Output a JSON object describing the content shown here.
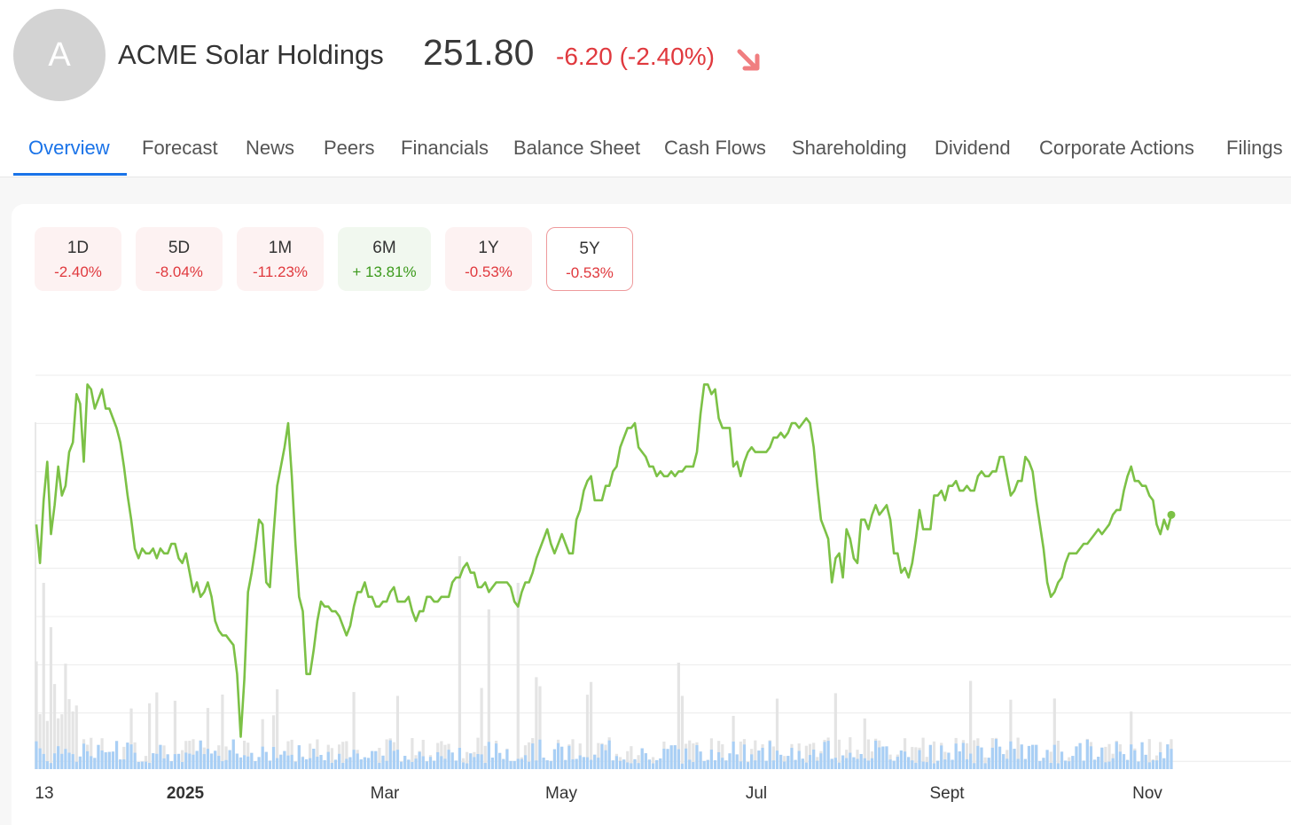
{
  "header": {
    "avatar_letter": "A",
    "company_name": "ACME Solar Holdings",
    "price": "251.80",
    "change_text": "-6.20 (-2.40%)",
    "change_color": "#e0393e",
    "trend_icon": "arrow-down-right-icon"
  },
  "tabs": [
    {
      "label": "Overview",
      "active": true
    },
    {
      "label": "Forecast"
    },
    {
      "label": "News"
    },
    {
      "label": "Peers"
    },
    {
      "label": "Financials"
    },
    {
      "label": "Balance Sheet"
    },
    {
      "label": "Cash Flows"
    },
    {
      "label": "Shareholding"
    },
    {
      "label": "Dividend"
    },
    {
      "label": "Corporate Actions"
    },
    {
      "label": "Filings"
    }
  ],
  "periods": [
    {
      "label": "1D",
      "value": "-2.40%",
      "tone": "negative"
    },
    {
      "label": "5D",
      "value": "-8.04%",
      "tone": "negative"
    },
    {
      "label": "1M",
      "value": "-11.23%",
      "tone": "negative"
    },
    {
      "label": "6M",
      "value": "+ 13.81%",
      "tone": "positive"
    },
    {
      "label": "1Y",
      "value": "-0.53%",
      "tone": "negative"
    },
    {
      "label": "5Y",
      "value": "-0.53%",
      "tone": "negative",
      "selected": true
    }
  ],
  "colors": {
    "price_line": "#7cc146",
    "volume_up": "#a9cff5",
    "volume_down": "#e4e4e4",
    "active_tab": "#1a73e8",
    "negative": "#e0393e",
    "positive": "#3c9a1c"
  },
  "chart_data": {
    "type": "line",
    "x_tick_labels": [
      "13",
      "2025",
      "Mar",
      "May",
      "Jul",
      "Sept",
      "Nov"
    ],
    "x_tick_bold": [
      false,
      true,
      false,
      false,
      false,
      false,
      false
    ],
    "last_value": 251.8,
    "grid": true,
    "price_series": [
      250,
      242,
      255,
      263,
      248,
      254,
      262,
      256,
      258,
      265,
      267,
      277,
      275,
      263,
      279,
      278,
      274,
      276,
      278,
      274,
      274,
      272,
      270,
      267,
      262,
      256,
      251,
      245,
      243,
      245,
      244,
      244,
      245,
      243,
      245,
      244,
      244,
      246,
      246,
      243,
      242,
      244,
      240,
      236,
      238,
      235,
      236,
      238,
      235,
      230,
      228,
      227,
      227,
      226,
      225,
      219,
      206,
      218,
      236,
      240,
      245,
      251,
      250,
      238,
      237,
      248,
      258,
      262,
      266,
      271,
      260,
      246,
      235,
      232,
      219,
      219,
      224,
      230,
      234,
      233,
      233,
      232,
      232,
      231,
      229,
      227,
      229,
      233,
      236,
      236,
      238,
      235,
      235,
      233,
      233,
      234,
      234,
      236,
      237,
      234,
      234,
      234,
      235,
      232,
      230,
      232,
      232,
      235,
      235,
      234,
      234,
      235,
      235,
      235,
      238,
      239,
      239,
      241,
      242,
      240,
      240,
      237,
      237,
      238,
      236,
      237,
      238,
      238,
      238,
      238,
      237,
      234,
      233,
      236,
      238,
      238,
      240,
      243,
      245,
      247,
      249,
      246,
      244,
      246,
      248,
      246,
      244,
      244,
      251,
      253,
      257,
      259,
      260,
      255,
      255,
      255,
      258,
      258,
      261,
      262,
      266,
      268,
      270,
      270,
      271,
      266,
      265,
      264,
      262,
      262,
      260,
      261,
      260,
      260,
      261,
      260,
      261,
      261,
      262,
      262,
      262,
      265,
      273,
      279,
      279,
      277,
      278,
      272,
      270,
      270,
      270,
      262,
      263,
      260,
      263,
      265,
      266,
      265,
      265,
      265,
      265,
      266,
      268,
      268,
      269,
      268,
      269,
      271,
      271,
      270,
      271,
      272,
      271,
      266,
      258,
      251,
      249,
      247,
      238,
      243,
      244,
      239,
      249,
      247,
      243,
      242,
      251,
      251,
      249,
      252,
      254,
      252,
      253,
      254,
      251,
      244,
      244,
      240,
      241,
      239,
      242,
      247,
      253,
      249,
      249,
      249,
      256,
      256,
      257,
      255,
      258,
      258,
      259,
      257,
      257,
      258,
      257,
      257,
      260,
      261,
      260,
      260,
      261,
      261,
      264,
      264,
      260,
      256,
      257,
      259,
      259,
      264,
      263,
      261,
      255,
      250,
      245,
      238,
      235,
      236,
      238,
      239,
      242,
      244,
      244,
      244,
      245,
      246,
      246,
      247,
      248,
      249,
      248,
      249,
      250,
      252,
      253,
      253,
      257,
      260,
      262,
      259,
      259,
      258,
      258,
      256,
      255,
      250,
      248,
      251,
      249,
      252
    ]
  }
}
